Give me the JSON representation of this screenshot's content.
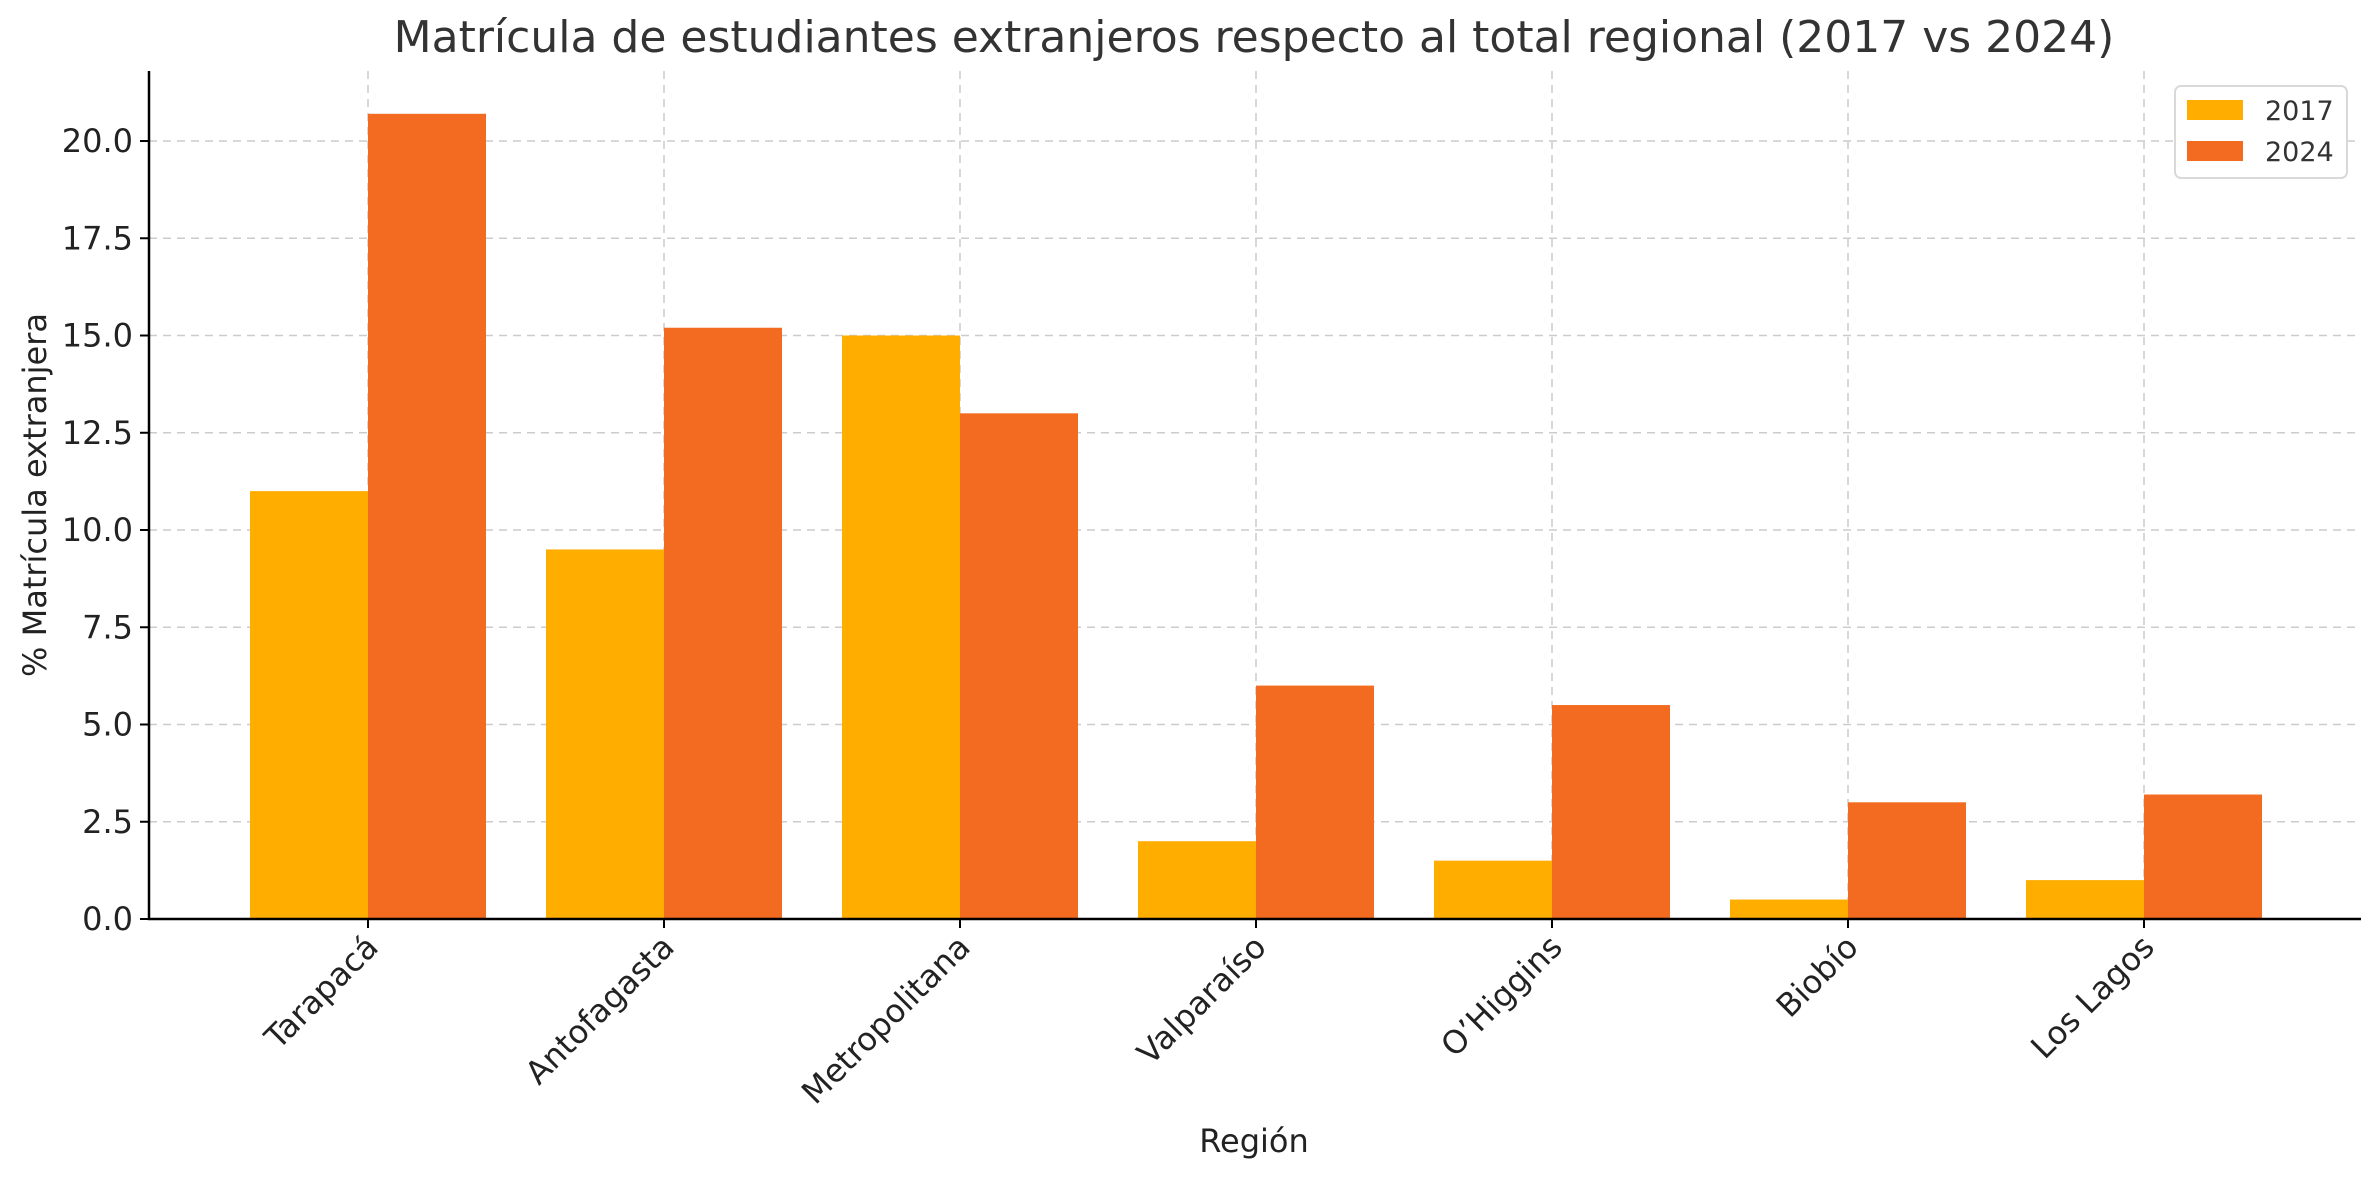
{
  "chart_data": {
    "type": "bar",
    "title": "Matrícula de estudiantes extranjeros respecto al total regional (2017 vs 2024)",
    "xlabel": "Región",
    "ylabel": "% Matrícula extranjera",
    "categories": [
      "Tarapacá",
      "Antofagasta",
      "Metropolitana",
      "Valparaíso",
      "O’Higgins",
      "Biobío",
      "Los Lagos"
    ],
    "series": [
      {
        "name": "2017",
        "color": "#ffae00",
        "values": [
          11.0,
          9.5,
          15.0,
          2.0,
          1.5,
          0.5,
          1.0
        ]
      },
      {
        "name": "2024",
        "color": "#f26b21",
        "values": [
          20.7,
          15.2,
          13.0,
          6.0,
          5.5,
          3.0,
          3.2
        ]
      }
    ],
    "ylim": [
      0,
      21.8
    ],
    "yticks": [
      "0.0",
      "2.5",
      "5.0",
      "7.5",
      "10.0",
      "12.5",
      "15.0",
      "17.5",
      "20.0"
    ],
    "grid": true,
    "legend_position": "top-right"
  }
}
